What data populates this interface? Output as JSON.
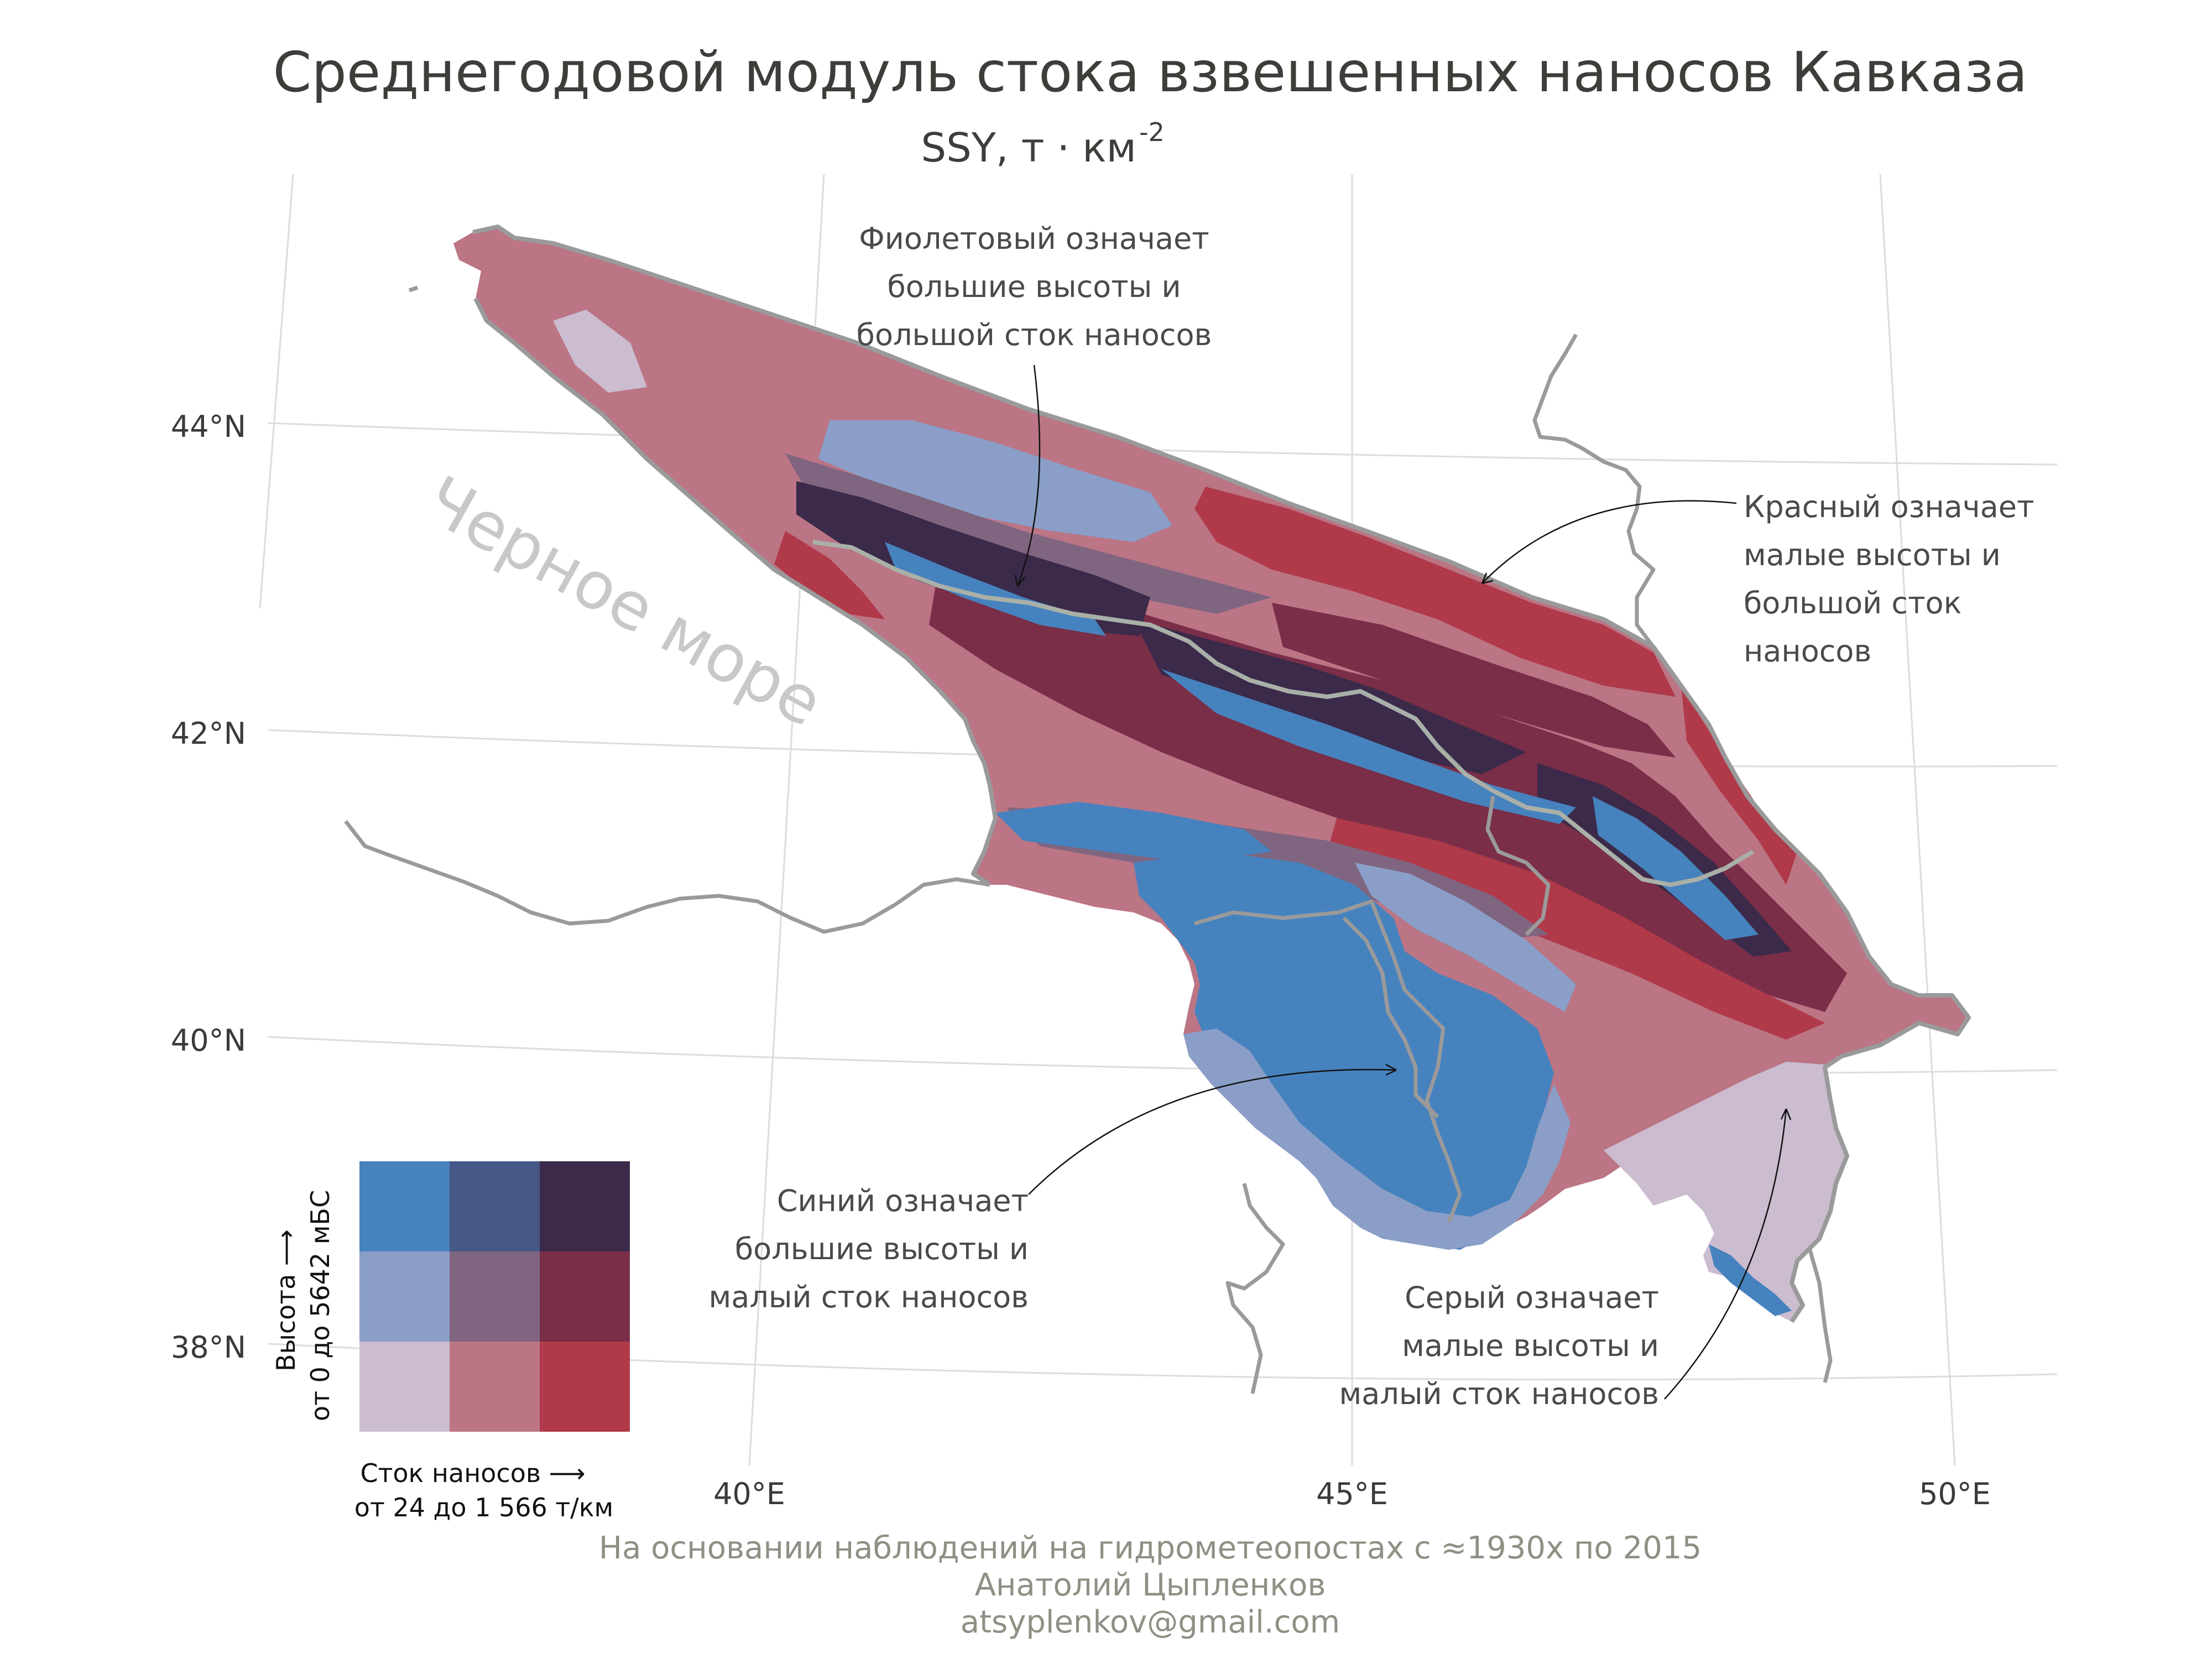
{
  "header": {
    "title": "Среднегодовой модуль стока взвешенных наносов Кавказа",
    "subtitle_main": "SSY, т · км",
    "subtitle_exp": "-2"
  },
  "sea_label": "Черное море",
  "axes": {
    "lat_labels": [
      "44°N",
      "42°N",
      "40°N",
      "38°N"
    ],
    "lon_labels": [
      "40°E",
      "45°E",
      "50°E"
    ]
  },
  "annotations": {
    "purple": [
      "Фиолетовый означает",
      "большие высоты и",
      "большой сток наносов"
    ],
    "red": [
      "Красный означает",
      "малые высоты и",
      "большой сток",
      "наносов"
    ],
    "blue": [
      "Синий означает",
      "большие высоты и",
      "малый сток наносов"
    ],
    "grey": [
      "Серый означает",
      "малые высоты и",
      "малый сток наносов"
    ]
  },
  "legend": {
    "y_label_1": "Высота ⟶",
    "y_label_2": "от 0 до 5642 мБС",
    "x_label_1": "Сток наносов ⟶",
    "x_label_2": "от 24 до 1 566 т/км",
    "colors": [
      [
        "#4682be",
        "#465888",
        "#3b2a4a"
      ],
      [
        "#8a9ec8",
        "#806580",
        "#7a2e48"
      ],
      [
        "#cbbcd0",
        "#bb7585",
        "#b03a4a"
      ]
    ]
  },
  "palette": {
    "grey_low": "#cbbcd0",
    "pink": "#bb7585",
    "red": "#b03a4a",
    "light_blue": "#8a9ec8",
    "mauve": "#806580",
    "wine": "#7a2e48",
    "blue": "#4682be",
    "navy": "#465888",
    "dark": "#3b2a4a",
    "border": "#9a9a9a",
    "graticule": "#dcdcdc"
  },
  "caption": {
    "line1": "На основании наблюдений на гидрометеопостах с ≈1930х по 2015",
    "line2": "Анатолий Цыпленков",
    "line3": "atsyplenkov@gmail.com"
  }
}
